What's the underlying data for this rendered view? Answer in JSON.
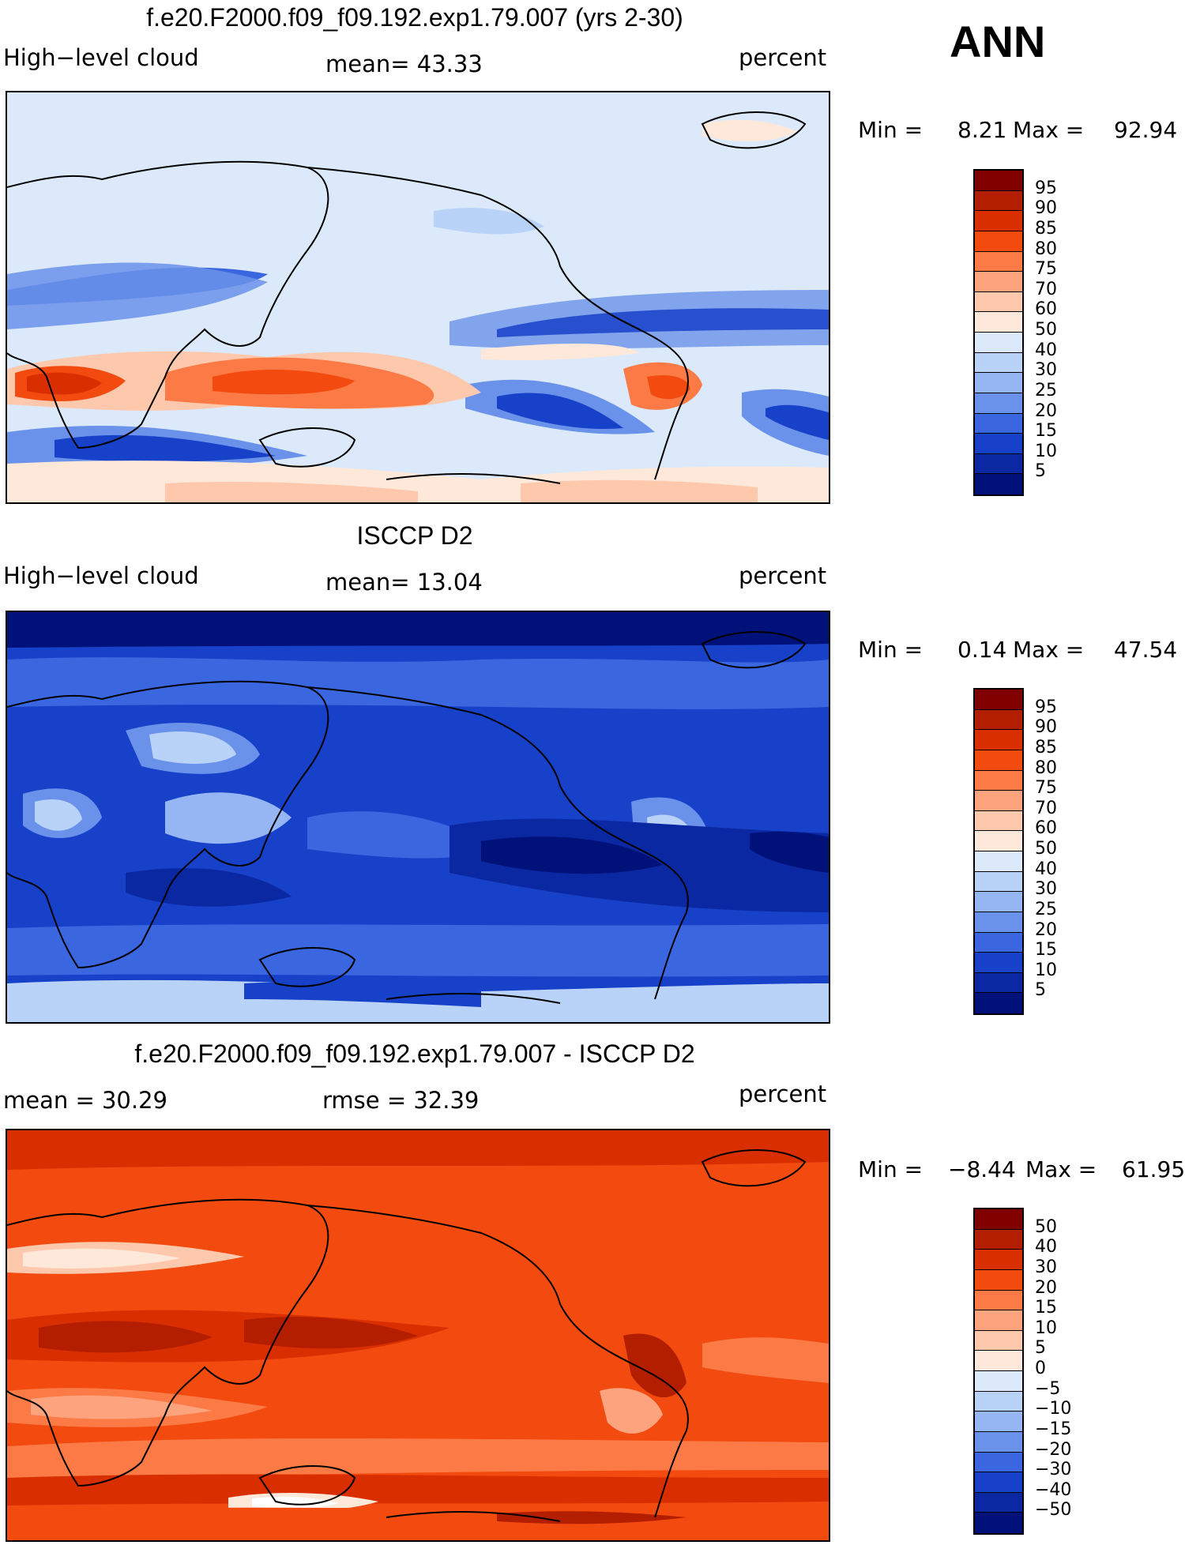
{
  "season": "ANN",
  "panels": [
    {
      "title": "f.e20.F2000.f09_f09.192.exp1.79.007 (yrs 2-30)",
      "left_label": "High−level cloud",
      "stat_label": "mean=   43.33",
      "units": "percent",
      "min_label": "Min =",
      "min_value": "8.21",
      "max_label": "Max =",
      "max_value": "92.94"
    },
    {
      "title": "ISCCP D2",
      "left_label": "High−level cloud",
      "stat_label": "mean=   13.04",
      "units": "percent",
      "min_label": "Min =",
      "min_value": "0.14",
      "max_label": "Max =",
      "max_value": "47.54"
    },
    {
      "title": "f.e20.F2000.f09_f09.192.exp1.79.007 - ISCCP D2",
      "left_label": "mean =   30.29",
      "stat_label": "rmse =   32.39",
      "units": "percent",
      "min_label": "Min =",
      "min_value": "−8.44",
      "max_label": "Max =",
      "max_value": "61.95"
    }
  ],
  "chart_data": [
    {
      "type": "heatmap",
      "title": "f.e20.F2000.f09_f09.192.exp1.79.007 (yrs 2-30)",
      "variable": "High−level cloud",
      "units": "percent",
      "mean": 43.33,
      "min": 8.21,
      "max": 92.94,
      "contour_levels": [
        95,
        90,
        85,
        80,
        75,
        70,
        60,
        50,
        40,
        30,
        25,
        20,
        15,
        10,
        5
      ],
      "colors": [
        "#800000",
        "#b31e00",
        "#d92e00",
        "#f24a0f",
        "#fb7a45",
        "#fda47e",
        "#fec8ad",
        "#fee8d9",
        "#dbe9fa",
        "#b9d2f7",
        "#95b6f3",
        "#6b92ea",
        "#3a66df",
        "#1741c8",
        "#0b28a3",
        "#00127a"
      ]
    },
    {
      "type": "heatmap",
      "title": "ISCCP D2",
      "variable": "High−level cloud",
      "units": "percent",
      "mean": 13.04,
      "min": 0.14,
      "max": 47.54,
      "contour_levels": [
        95,
        90,
        85,
        80,
        75,
        70,
        60,
        50,
        40,
        30,
        25,
        20,
        15,
        10,
        5
      ],
      "colors": [
        "#800000",
        "#b31e00",
        "#d92e00",
        "#f24a0f",
        "#fb7a45",
        "#fda47e",
        "#fec8ad",
        "#fee8d9",
        "#dbe9fa",
        "#b9d2f7",
        "#95b6f3",
        "#6b92ea",
        "#3a66df",
        "#1741c8",
        "#0b28a3",
        "#00127a"
      ]
    },
    {
      "type": "heatmap",
      "title": "f.e20.F2000.f09_f09.192.exp1.79.007 - ISCCP D2",
      "units": "percent",
      "mean": 30.29,
      "rmse": 32.39,
      "min": -8.44,
      "max": 61.95,
      "contour_levels": [
        50,
        40,
        30,
        20,
        15,
        10,
        5,
        0,
        -5,
        -10,
        -15,
        -20,
        -30,
        -40,
        -50
      ],
      "colors": [
        "#800000",
        "#b31e00",
        "#d92e00",
        "#f24a0f",
        "#fb7a45",
        "#fda47e",
        "#fec8ad",
        "#fee8d9",
        "#dbe9fa",
        "#b9d2f7",
        "#95b6f3",
        "#6b92ea",
        "#3a66df",
        "#1741c8",
        "#0b28a3",
        "#00127a"
      ]
    }
  ]
}
